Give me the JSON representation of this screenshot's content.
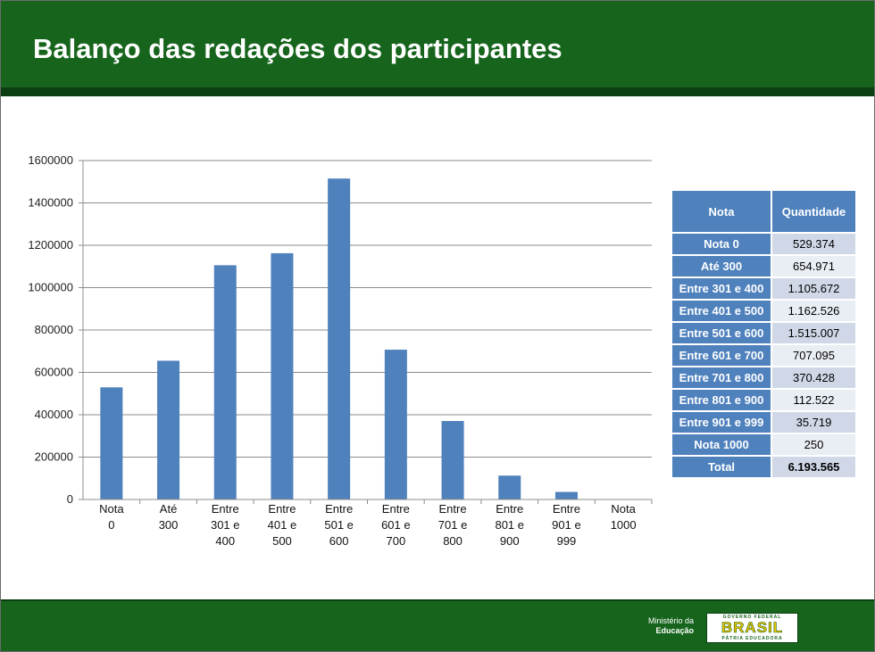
{
  "slide": {
    "title": "Balanço das redações dos participantes"
  },
  "chart_data": {
    "type": "bar",
    "categories": [
      [
        "Nota",
        "0"
      ],
      [
        "Até",
        "300"
      ],
      [
        "Entre",
        "301 e",
        "400"
      ],
      [
        "Entre",
        "401 e",
        "500"
      ],
      [
        "Entre",
        "501 e",
        "600"
      ],
      [
        "Entre",
        "601 e",
        "700"
      ],
      [
        "Entre",
        "701 e",
        "800"
      ],
      [
        "Entre",
        "801 e",
        "900"
      ],
      [
        "Entre",
        "901 e",
        "999"
      ],
      [
        "Nota",
        "1000"
      ]
    ],
    "values": [
      529374,
      654971,
      1105672,
      1162526,
      1515007,
      707095,
      370428,
      112522,
      35719,
      250
    ],
    "ylim": [
      0,
      1600000
    ],
    "yticks": [
      0,
      200000,
      400000,
      600000,
      800000,
      1000000,
      1200000,
      1400000,
      1600000
    ],
    "grid": true,
    "bar_color": "#4f81bd",
    "gridline_color": "#8c8c8c"
  },
  "table": {
    "headers": [
      "Nota",
      "Quantidade"
    ],
    "rows": [
      {
        "grade": "Nota 0",
        "quantity": "529.374"
      },
      {
        "grade": "Até 300",
        "quantity": "654.971"
      },
      {
        "grade": "Entre 301 e 400",
        "quantity": "1.105.672"
      },
      {
        "grade": "Entre 401 e 500",
        "quantity": "1.162.526"
      },
      {
        "grade": "Entre 501 e 600",
        "quantity": "1.515.007"
      },
      {
        "grade": "Entre 601 e 700",
        "quantity": "707.095"
      },
      {
        "grade": "Entre 701 e 800",
        "quantity": "370.428"
      },
      {
        "grade": "Entre 801 e 900",
        "quantity": "112.522"
      },
      {
        "grade": "Entre 901 e 999",
        "quantity": "35.719"
      },
      {
        "grade": "Nota 1000",
        "quantity": "250"
      },
      {
        "grade": "Total",
        "quantity": "6.193.565"
      }
    ],
    "header_color": "#4f81bd",
    "row_color": "#d0d8e8",
    "row_alt_color": "#e9edf4"
  },
  "footer": {
    "ministry_line1": "Ministério da",
    "ministry_line2": "Educação",
    "logo_top": "GOVERNO FEDERAL",
    "logo_main": "BRASIL",
    "logo_bottom": "PÁTRIA EDUCADORA"
  },
  "colors": {
    "header_green": "#17651d",
    "header_dark_green": "#0c3f11",
    "logo_yellow": "#f2c400"
  }
}
